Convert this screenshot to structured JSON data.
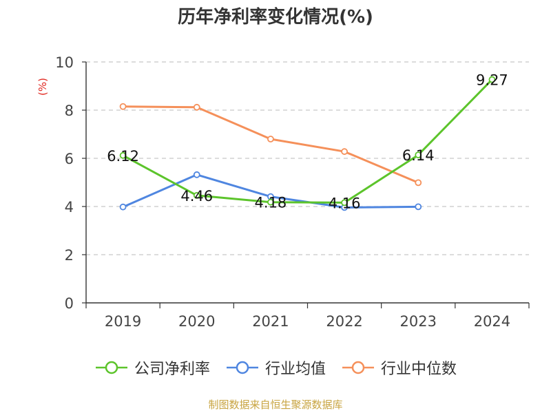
{
  "chart_data": {
    "type": "line",
    "title": "历年净利率变化情况(%)",
    "ylabel": "(%)",
    "categories": [
      "2019",
      "2020",
      "2021",
      "2022",
      "2023",
      "2024"
    ],
    "ylim": [
      0,
      10
    ],
    "yticks": [
      0,
      2,
      4,
      6,
      8,
      10
    ],
    "grid": true,
    "legend_position": "bottom",
    "series": [
      {
        "name": "公司净利率",
        "color": "#5cc42b",
        "values": [
          6.12,
          4.46,
          4.18,
          4.16,
          6.14,
          9.27
        ],
        "labels": [
          "6.12",
          "4.46",
          "4.18",
          "4.16",
          "6.14",
          "9.27"
        ]
      },
      {
        "name": "行业均值",
        "color": "#4f86e0",
        "values": [
          3.98,
          5.32,
          4.41,
          3.96,
          3.99,
          null
        ]
      },
      {
        "name": "行业中位数",
        "color": "#f5905a",
        "values": [
          8.15,
          8.12,
          6.8,
          6.28,
          4.99,
          null
        ]
      }
    ]
  },
  "source": "制图数据来自恒生聚源数据库"
}
